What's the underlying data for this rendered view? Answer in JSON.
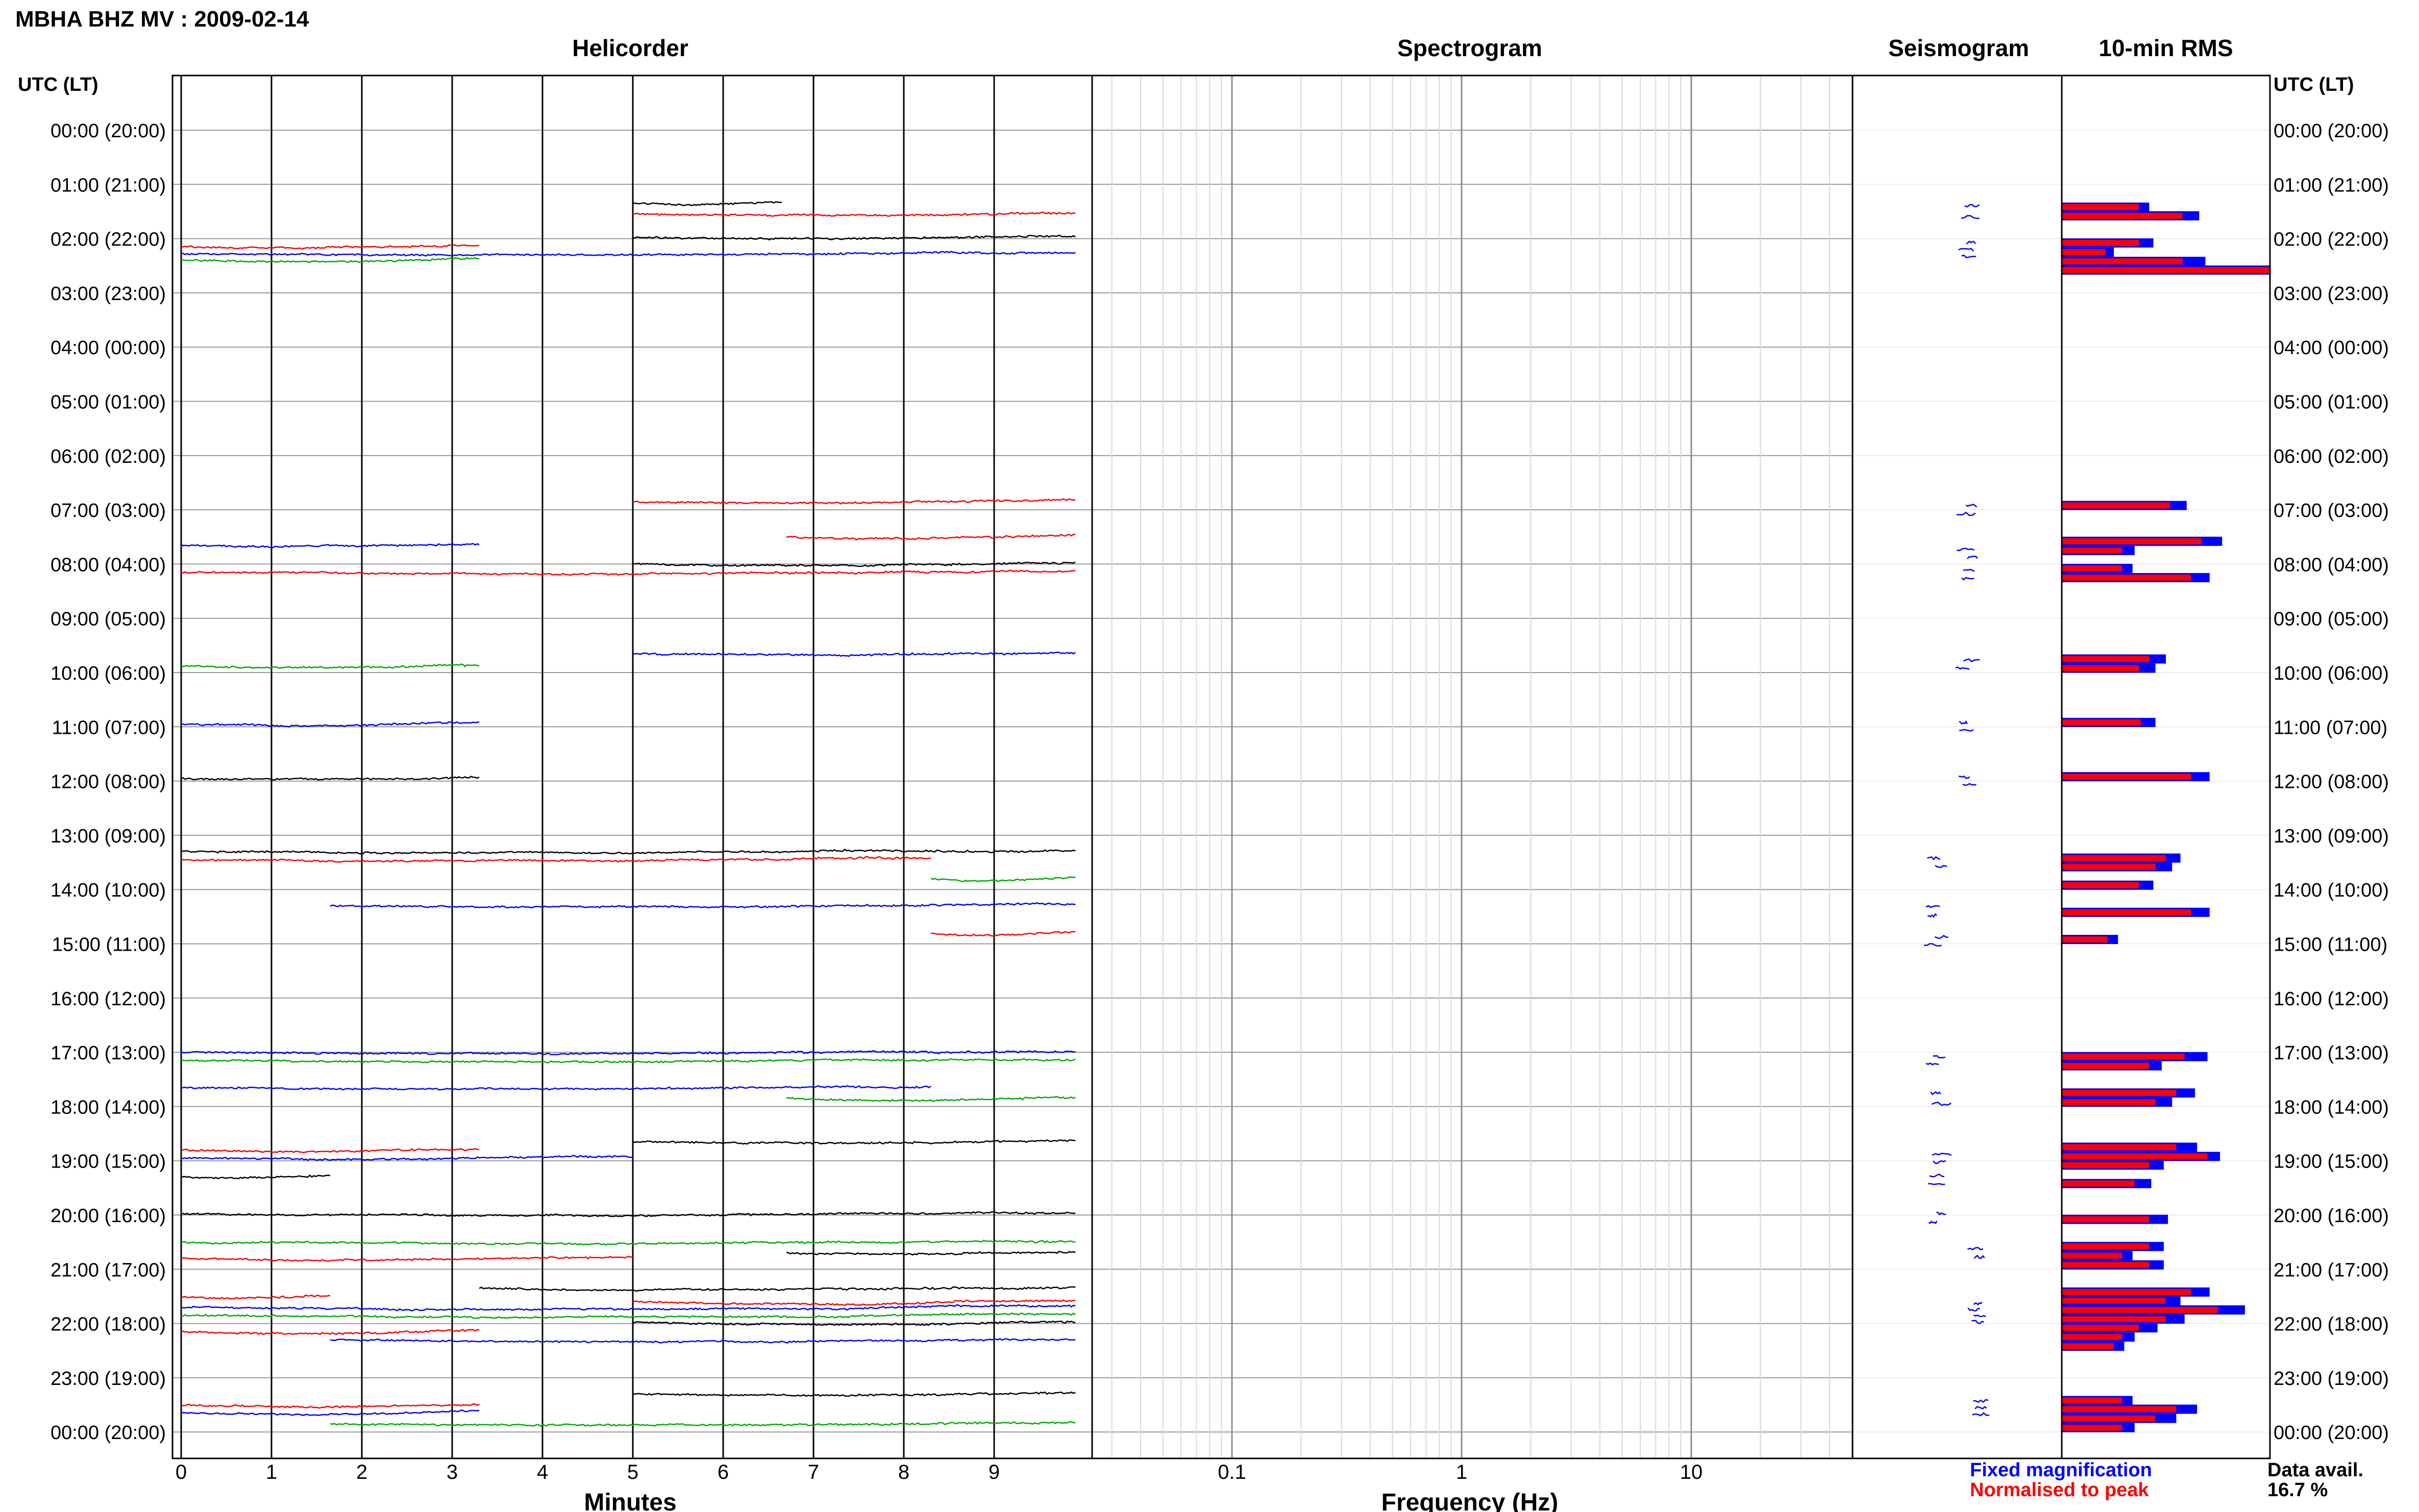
{
  "header": {
    "station_title": "MBHA BHZ MV : 2009-02-14",
    "left_axis_title": "UTC (LT)",
    "right_axis_title": "UTC (LT)"
  },
  "panels": {
    "helicorder": "Helicorder",
    "spectrogram": "Spectrogram",
    "seismogram": "Seismogram",
    "rms": "10-min RMS"
  },
  "x_axes": {
    "helicorder_label": "Minutes",
    "helicorder_ticks": [
      "0",
      "1",
      "2",
      "3",
      "4",
      "5",
      "6",
      "7",
      "8",
      "9"
    ],
    "spectrogram_label": "Frequency (Hz)",
    "spectrogram_ticks": [
      "0.1",
      "1",
      "10"
    ]
  },
  "time_labels": [
    "00:00 (20:00)",
    "01:00 (21:00)",
    "02:00 (22:00)",
    "03:00 (23:00)",
    "04:00 (00:00)",
    "05:00 (01:00)",
    "06:00 (02:00)",
    "07:00 (03:00)",
    "08:00 (04:00)",
    "09:00 (05:00)",
    "10:00 (06:00)",
    "11:00 (07:00)",
    "12:00 (08:00)",
    "13:00 (09:00)",
    "14:00 (10:00)",
    "15:00 (11:00)",
    "16:00 (12:00)",
    "17:00 (13:00)",
    "18:00 (14:00)",
    "19:00 (15:00)",
    "20:00 (16:00)",
    "21:00 (17:00)",
    "22:00 (18:00)",
    "23:00 (19:00)",
    "00:00 (20:00)"
  ],
  "legend": {
    "fixed": "Fixed magnification",
    "normalised": "Normalised to peak",
    "fixed_color": "#0000ff",
    "normalised_color": "#ff0000"
  },
  "data_availability": {
    "label": "Data avail.",
    "value": "16.7 %"
  },
  "chart_data": {
    "type": "heatmap",
    "description_units": "hours since 00:00 UTC; helicorder minutes 0-10",
    "trace_colors": [
      "#000000",
      "#ff0000",
      "#0000ff",
      "#00aa00"
    ],
    "helicorder_segments": [
      {
        "row": 1.35,
        "x0": 5.0,
        "x1": 6.65,
        "color": "#000000"
      },
      {
        "row": 1.55,
        "x0": 5.0,
        "x1": 9.9,
        "color": "#ff0000"
      },
      {
        "row": 1.98,
        "x0": 5.0,
        "x1": 9.9,
        "color": "#000000"
      },
      {
        "row": 2.15,
        "x0": 0.0,
        "x1": 3.3,
        "color": "#ff0000"
      },
      {
        "row": 2.28,
        "x0": 0.0,
        "x1": 9.9,
        "color": "#0000ff"
      },
      {
        "row": 2.4,
        "x0": 0.0,
        "x1": 3.3,
        "color": "#00aa00"
      },
      {
        "row": 6.85,
        "x0": 5.0,
        "x1": 9.9,
        "color": "#ff0000"
      },
      {
        "row": 7.5,
        "x0": 6.7,
        "x1": 9.9,
        "color": "#ff0000"
      },
      {
        "row": 7.65,
        "x0": 0.0,
        "x1": 3.3,
        "color": "#0000ff"
      },
      {
        "row": 8.0,
        "x0": 5.0,
        "x1": 9.9,
        "color": "#000000"
      },
      {
        "row": 8.15,
        "x0": 0.0,
        "x1": 9.9,
        "color": "#ff0000"
      },
      {
        "row": 9.65,
        "x0": 5.0,
        "x1": 9.9,
        "color": "#0000ff"
      },
      {
        "row": 9.88,
        "x0": 0.0,
        "x1": 3.3,
        "color": "#00aa00"
      },
      {
        "row": 10.95,
        "x0": 0.0,
        "x1": 3.3,
        "color": "#0000ff"
      },
      {
        "row": 11.95,
        "x0": 0.0,
        "x1": 3.3,
        "color": "#000000"
      },
      {
        "row": 13.3,
        "x0": 0.0,
        "x1": 9.9,
        "color": "#000000"
      },
      {
        "row": 13.45,
        "x0": 0.0,
        "x1": 8.3,
        "color": "#ff0000"
      },
      {
        "row": 13.8,
        "x0": 8.3,
        "x1": 9.9,
        "color": "#00aa00"
      },
      {
        "row": 14.3,
        "x0": 1.65,
        "x1": 9.9,
        "color": "#0000ff"
      },
      {
        "row": 14.8,
        "x0": 8.3,
        "x1": 9.9,
        "color": "#ff0000"
      },
      {
        "row": 17.0,
        "x0": 0.0,
        "x1": 9.9,
        "color": "#0000ff"
      },
      {
        "row": 17.15,
        "x0": 0.0,
        "x1": 9.9,
        "color": "#00aa00"
      },
      {
        "row": 17.65,
        "x0": 0.0,
        "x1": 8.3,
        "color": "#0000ff"
      },
      {
        "row": 17.85,
        "x0": 6.7,
        "x1": 9.9,
        "color": "#00aa00"
      },
      {
        "row": 18.65,
        "x0": 5.0,
        "x1": 9.9,
        "color": "#000000"
      },
      {
        "row": 18.8,
        "x0": 0.0,
        "x1": 3.3,
        "color": "#ff0000"
      },
      {
        "row": 18.95,
        "x0": 0.0,
        "x1": 5.0,
        "color": "#0000ff"
      },
      {
        "row": 19.3,
        "x0": 0.0,
        "x1": 1.65,
        "color": "#000000"
      },
      {
        "row": 19.98,
        "x0": 0.0,
        "x1": 9.9,
        "color": "#000000"
      },
      {
        "row": 20.5,
        "x0": 0.0,
        "x1": 9.9,
        "color": "#00aa00"
      },
      {
        "row": 20.7,
        "x0": 6.7,
        "x1": 9.9,
        "color": "#000000"
      },
      {
        "row": 20.8,
        "x0": 0.0,
        "x1": 5.0,
        "color": "#ff0000"
      },
      {
        "row": 21.35,
        "x0": 3.3,
        "x1": 9.9,
        "color": "#000000"
      },
      {
        "row": 21.5,
        "x0": 0.0,
        "x1": 1.65,
        "color": "#ff0000"
      },
      {
        "row": 21.6,
        "x0": 5.0,
        "x1": 9.9,
        "color": "#ff0000"
      },
      {
        "row": 21.7,
        "x0": 0.0,
        "x1": 9.9,
        "color": "#0000ff"
      },
      {
        "row": 21.85,
        "x0": 0.0,
        "x1": 9.9,
        "color": "#00aa00"
      },
      {
        "row": 21.98,
        "x0": 5.0,
        "x1": 9.9,
        "color": "#000000"
      },
      {
        "row": 22.15,
        "x0": 0.0,
        "x1": 3.3,
        "color": "#ff0000"
      },
      {
        "row": 22.3,
        "x0": 1.65,
        "x1": 9.9,
        "color": "#0000ff"
      },
      {
        "row": 23.3,
        "x0": 5.0,
        "x1": 9.9,
        "color": "#000000"
      },
      {
        "row": 23.5,
        "x0": 0.0,
        "x1": 3.3,
        "color": "#ff0000"
      },
      {
        "row": 23.65,
        "x0": 0.0,
        "x1": 3.3,
        "color": "#0000ff"
      },
      {
        "row": 23.85,
        "x0": 1.65,
        "x1": 9.9,
        "color": "#00aa00"
      }
    ],
    "seismogram_clusters": [
      {
        "hour": 1.5,
        "spread": 0.2
      },
      {
        "hour": 2.2,
        "spread": 0.25
      },
      {
        "hour": 7.0,
        "spread": 0.1
      },
      {
        "hour": 7.8,
        "spread": 0.15
      },
      {
        "hour": 8.2,
        "spread": 0.15
      },
      {
        "hour": 9.85,
        "spread": 0.1
      },
      {
        "hour": 11.0,
        "spread": 0.05
      },
      {
        "hour": 12.0,
        "spread": 0.05
      },
      {
        "hour": 13.5,
        "spread": 0.15
      },
      {
        "hour": 14.4,
        "spread": 0.1
      },
      {
        "hour": 14.95,
        "spread": 0.05
      },
      {
        "hour": 17.15,
        "spread": 0.15
      },
      {
        "hour": 17.85,
        "spread": 0.2
      },
      {
        "hour": 18.95,
        "spread": 0.15
      },
      {
        "hour": 19.35,
        "spread": 0.05
      },
      {
        "hour": 20.05,
        "spread": 0.1
      },
      {
        "hour": 20.7,
        "spread": 0.15
      },
      {
        "hour": 21.8,
        "spread": 0.35
      },
      {
        "hour": 23.55,
        "spread": 0.25
      }
    ],
    "rms_bars": [
      {
        "hour": 1.42,
        "normalised": 0.37,
        "fixed": 0.42
      },
      {
        "hour": 1.58,
        "normalised": 0.58,
        "fixed": 0.66
      },
      {
        "hour": 2.08,
        "normalised": 0.37,
        "fixed": 0.44
      },
      {
        "hour": 2.25,
        "normalised": 0.21,
        "fixed": 0.25
      },
      {
        "hour": 2.42,
        "normalised": 0.58,
        "fixed": 0.69
      },
      {
        "hour": 2.58,
        "normalised": 1.0,
        "fixed": 1.0
      },
      {
        "hour": 6.92,
        "normalised": 0.52,
        "fixed": 0.6
      },
      {
        "hour": 7.58,
        "normalised": 0.67,
        "fixed": 0.77
      },
      {
        "hour": 7.75,
        "normalised": 0.29,
        "fixed": 0.35
      },
      {
        "hour": 8.08,
        "normalised": 0.29,
        "fixed": 0.34
      },
      {
        "hour": 8.25,
        "normalised": 0.62,
        "fixed": 0.71
      },
      {
        "hour": 9.75,
        "normalised": 0.42,
        "fixed": 0.5
      },
      {
        "hour": 9.92,
        "normalised": 0.37,
        "fixed": 0.45
      },
      {
        "hour": 10.92,
        "normalised": 0.38,
        "fixed": 0.45
      },
      {
        "hour": 11.92,
        "normalised": 0.62,
        "fixed": 0.71
      },
      {
        "hour": 13.42,
        "normalised": 0.5,
        "fixed": 0.57
      },
      {
        "hour": 13.58,
        "normalised": 0.45,
        "fixed": 0.53
      },
      {
        "hour": 13.92,
        "normalised": 0.37,
        "fixed": 0.44
      },
      {
        "hour": 14.42,
        "normalised": 0.62,
        "fixed": 0.71
      },
      {
        "hour": 14.92,
        "normalised": 0.22,
        "fixed": 0.27
      },
      {
        "hour": 17.08,
        "normalised": 0.59,
        "fixed": 0.7
      },
      {
        "hour": 17.25,
        "normalised": 0.42,
        "fixed": 0.48
      },
      {
        "hour": 17.75,
        "normalised": 0.55,
        "fixed": 0.64
      },
      {
        "hour": 17.92,
        "normalised": 0.45,
        "fixed": 0.53
      },
      {
        "hour": 18.75,
        "normalised": 0.55,
        "fixed": 0.65
      },
      {
        "hour": 18.92,
        "normalised": 0.7,
        "fixed": 0.76
      },
      {
        "hour": 19.08,
        "normalised": 0.42,
        "fixed": 0.49
      },
      {
        "hour": 19.42,
        "normalised": 0.35,
        "fixed": 0.43
      },
      {
        "hour": 20.08,
        "normalised": 0.42,
        "fixed": 0.51
      },
      {
        "hour": 20.58,
        "normalised": 0.42,
        "fixed": 0.49
      },
      {
        "hour": 20.75,
        "normalised": 0.29,
        "fixed": 0.34
      },
      {
        "hour": 20.92,
        "normalised": 0.42,
        "fixed": 0.49
      },
      {
        "hour": 21.42,
        "normalised": 0.62,
        "fixed": 0.71
      },
      {
        "hour": 21.58,
        "normalised": 0.5,
        "fixed": 0.57
      },
      {
        "hour": 21.75,
        "normalised": 0.75,
        "fixed": 0.88
      },
      {
        "hour": 21.92,
        "normalised": 0.5,
        "fixed": 0.59
      },
      {
        "hour": 22.08,
        "normalised": 0.37,
        "fixed": 0.46
      },
      {
        "hour": 22.25,
        "normalised": 0.29,
        "fixed": 0.35
      },
      {
        "hour": 22.42,
        "normalised": 0.25,
        "fixed": 0.3
      },
      {
        "hour": 23.42,
        "normalised": 0.29,
        "fixed": 0.34
      },
      {
        "hour": 23.58,
        "normalised": 0.55,
        "fixed": 0.65
      },
      {
        "hour": 23.75,
        "normalised": 0.45,
        "fixed": 0.55
      },
      {
        "hour": 23.92,
        "normalised": 0.29,
        "fixed": 0.35
      }
    ]
  }
}
